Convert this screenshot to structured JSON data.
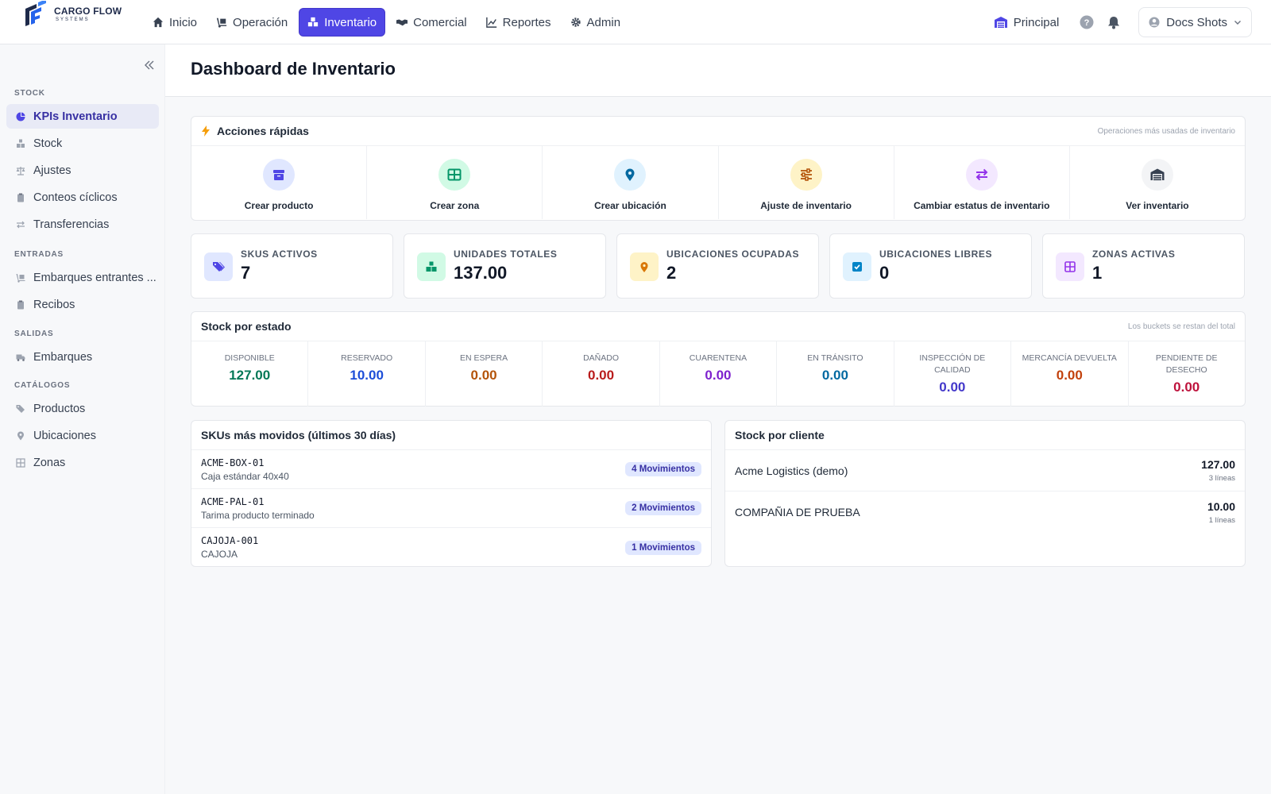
{
  "brand": {
    "name": "CARGO FLOW",
    "sub": "SYSTEMS"
  },
  "nav": [
    {
      "label": "Inicio",
      "icon": "home-icon"
    },
    {
      "label": "Operación",
      "icon": "dolly-icon"
    },
    {
      "label": "Inventario",
      "icon": "boxes-icon",
      "active": true
    },
    {
      "label": "Comercial",
      "icon": "handshake-icon"
    },
    {
      "label": "Reportes",
      "icon": "chart-line-icon"
    },
    {
      "label": "Admin",
      "icon": "gear-icon"
    }
  ],
  "topright": {
    "branch": "Principal",
    "user": "Docs Shots"
  },
  "sidebar": {
    "sections": [
      "STOCK",
      "ENTRADAS",
      "SALIDAS",
      "CATÁLOGOS"
    ],
    "items": [
      {
        "label": "KPIs Inventario",
        "icon": "chart-pie-icon",
        "active": true
      },
      {
        "label": "Stock",
        "icon": "boxes-icon"
      },
      {
        "label": "Ajustes",
        "icon": "scale-icon"
      },
      {
        "label": "Conteos cíclicos",
        "icon": "clipboard-icon"
      },
      {
        "label": "Transferencias",
        "icon": "transfer-icon"
      },
      {
        "label": "Embarques entrantes ...",
        "icon": "dolly-icon"
      },
      {
        "label": "Recibos",
        "icon": "clipboard-icon"
      },
      {
        "label": "Embarques",
        "icon": "truck-icon"
      },
      {
        "label": "Productos",
        "icon": "tags-icon"
      },
      {
        "label": "Ubicaciones",
        "icon": "map-pin-icon"
      },
      {
        "label": "Zonas",
        "icon": "grid-icon"
      }
    ]
  },
  "page": {
    "title": "Dashboard de Inventario"
  },
  "quick_actions": {
    "title": "Acciones rápidas",
    "hint": "Operaciones más usadas de inventario",
    "items": [
      {
        "label": "Crear producto",
        "icon": "box-icon",
        "color": "#4f46e5",
        "bg": "#e0e7ff"
      },
      {
        "label": "Crear zona",
        "icon": "table-icon",
        "color": "#059669",
        "bg": "#d1fae5"
      },
      {
        "label": "Crear ubicación",
        "icon": "map-pin-icon",
        "color": "#0369a1",
        "bg": "#e0f2fe"
      },
      {
        "label": "Ajuste de inventario",
        "icon": "sliders-icon",
        "color": "#b45309",
        "bg": "#fef3c7"
      },
      {
        "label": "Cambiar estatus de inventario",
        "icon": "arrows-exchange-icon",
        "color": "#9333ea",
        "bg": "#f3e8ff"
      },
      {
        "label": "Ver inventario",
        "icon": "warehouse-icon",
        "color": "#374151",
        "bg": "#f3f4f6"
      }
    ]
  },
  "kpis": [
    {
      "label": "SKUS ACTIVOS",
      "value": "7",
      "icon": "tags-icon",
      "color": "#4f46e5",
      "bg": "#e0e7ff"
    },
    {
      "label": "UNIDADES TOTALES",
      "value": "137.00",
      "icon": "boxes-icon",
      "color": "#059669",
      "bg": "#d1fae5"
    },
    {
      "label": "UBICACIONES OCUPADAS",
      "value": "2",
      "icon": "map-pin-icon",
      "color": "#d97706",
      "bg": "#fef3c7"
    },
    {
      "label": "UBICACIONES LIBRES",
      "value": "0",
      "icon": "check-square-icon",
      "color": "#0284c7",
      "bg": "#e0f2fe"
    },
    {
      "label": "ZONAS ACTIVAS",
      "value": "1",
      "icon": "grid-icon",
      "color": "#9333ea",
      "bg": "#f3e8ff"
    }
  ],
  "stock_status": {
    "title": "Stock por estado",
    "hint": "Los buckets se restan del total",
    "items": [
      {
        "label": "DISPONIBLE",
        "value": "127.00",
        "color": "#047857"
      },
      {
        "label": "RESERVADO",
        "value": "10.00",
        "color": "#1d4ed8"
      },
      {
        "label": "EN ESPERA",
        "value": "0.00",
        "color": "#b45309"
      },
      {
        "label": "DAÑADO",
        "value": "0.00",
        "color": "#b91c1c"
      },
      {
        "label": "CUARENTENA",
        "value": "0.00",
        "color": "#7e22ce"
      },
      {
        "label": "EN TRÁNSITO",
        "value": "0.00",
        "color": "#0369a1"
      },
      {
        "label": "INSPECCIÓN DE CALIDAD",
        "value": "0.00",
        "color": "#4338ca"
      },
      {
        "label": "MERCANCÍA DEVUELTA",
        "value": "0.00",
        "color": "#c2410c"
      },
      {
        "label": "PENDIENTE DE DESECHO",
        "value": "0.00",
        "color": "#be123c"
      }
    ]
  },
  "top_skus": {
    "title": "SKUs más movidos (últimos 30 días)",
    "rows": [
      {
        "code": "ACME-BOX-01",
        "desc": "Caja estándar 40x40",
        "badge": "4 Movimientos"
      },
      {
        "code": "ACME-PAL-01",
        "desc": "Tarima producto terminado",
        "badge": "2 Movimientos"
      },
      {
        "code": "CAJOJA-001",
        "desc": "CAJOJA",
        "badge": "1 Movimientos"
      }
    ]
  },
  "stock_by_client": {
    "title": "Stock por cliente",
    "rows": [
      {
        "name": "Acme Logistics (demo)",
        "qty": "127.00",
        "lines": "3 líneas"
      },
      {
        "name": "COMPAÑIA DE PRUEBA",
        "qty": "10.00",
        "lines": "1 líneas"
      }
    ]
  }
}
